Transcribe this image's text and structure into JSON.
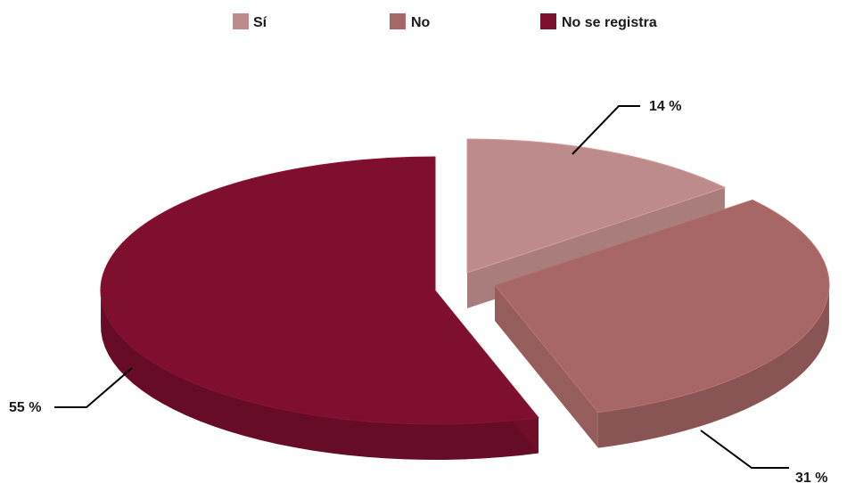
{
  "chart_data": {
    "type": "pie",
    "title": "",
    "categories": [
      "Sí",
      "No",
      "No se registra"
    ],
    "values": [
      14,
      31,
      55
    ],
    "labels": [
      "14 %",
      "31 %",
      "55 %"
    ],
    "colors": [
      "#bd8b8b",
      "#a66766",
      "#7e0f2f"
    ],
    "legend": {
      "placement": "top",
      "items": [
        "Sí",
        "No",
        "No se registra"
      ]
    },
    "style": "3d-exploded"
  }
}
